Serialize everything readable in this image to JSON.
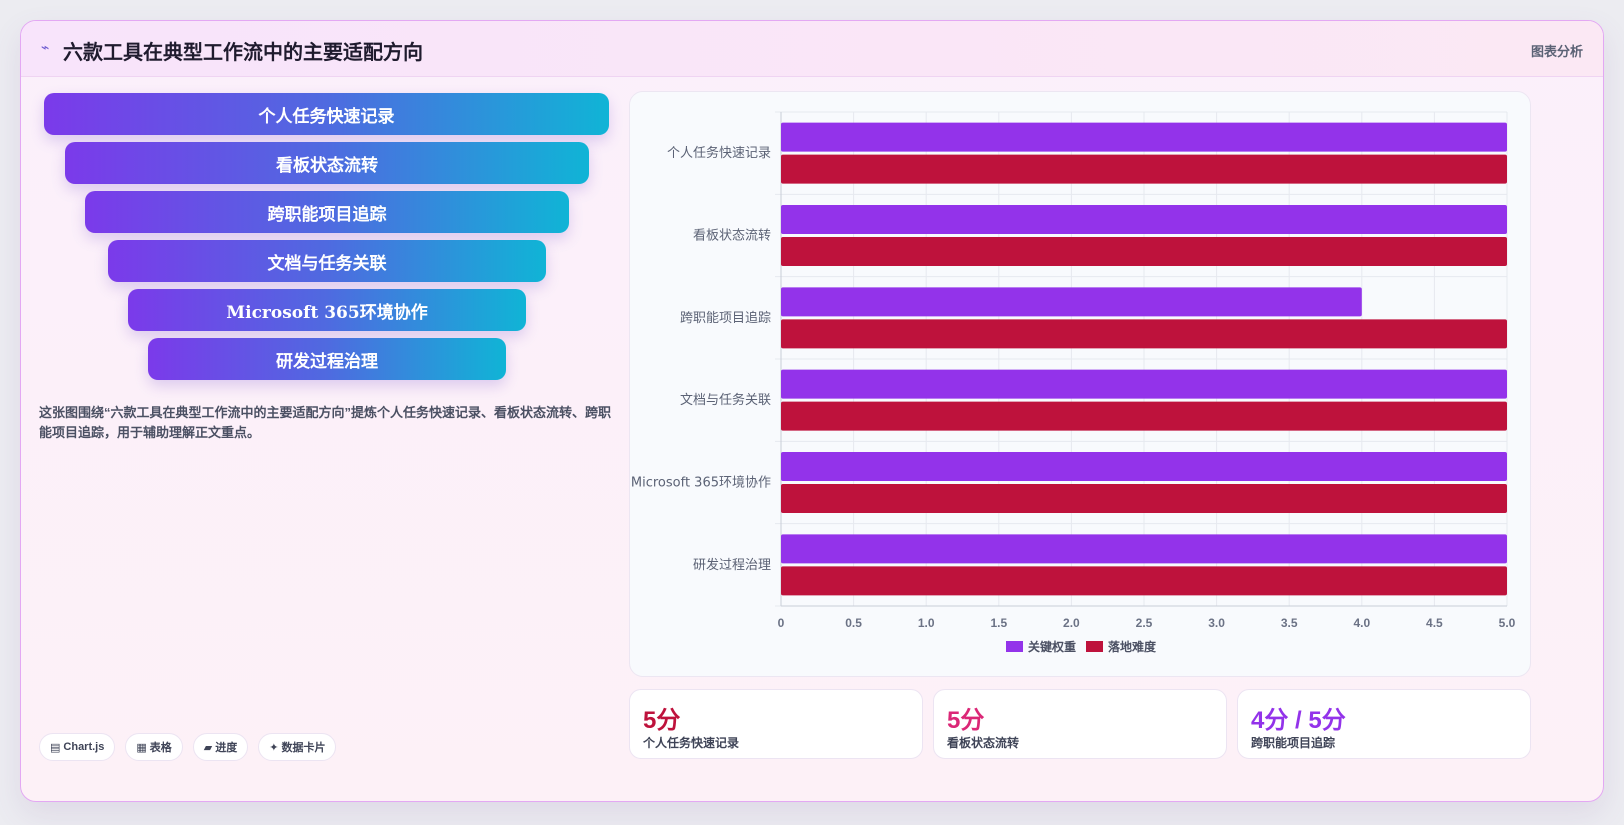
{
  "header": {
    "title": "六款工具在典型工作流中的主要适配方向",
    "tag": "图表分析",
    "icon": "chart-line-icon"
  },
  "funnel": [
    "个人任务快速记录",
    "看板状态流转",
    "跨职能项目追踪",
    "文档与任务关联",
    "Microsoft 365环境协作",
    "研发过程治理"
  ],
  "description": "这张图围绕“六款工具在典型工作流中的主要适配方向”提炼个人任务快速记录、看板状态流转、跨职能项目追踪，用于辅助理解正文重点。",
  "pills": [
    {
      "icon": "▤",
      "label": "Chart.js"
    },
    {
      "icon": "▦",
      "label": "表格"
    },
    {
      "icon": "▰",
      "label": "进度"
    },
    {
      "icon": "✦",
      "label": "数据卡片"
    }
  ],
  "stats": [
    {
      "value": "5分",
      "label": "个人任务快速记录",
      "color": "#be123c"
    },
    {
      "value": "5分",
      "label": "看板状态流转",
      "color": "#db2777"
    },
    {
      "value": "4分 / 5分",
      "label": "跨职能项目追踪",
      "color": "#9333ea"
    }
  ],
  "chart_data": {
    "type": "bar",
    "orientation": "horizontal",
    "categories": [
      "个人任务快速记录",
      "看板状态流转",
      "跨职能项目追踪",
      "文档与任务关联",
      "Microsoft 365环境协作",
      "研发过程治理"
    ],
    "series": [
      {
        "name": "关键权重",
        "color": "#9333ea",
        "values": [
          5,
          5,
          4,
          5,
          5,
          5
        ]
      },
      {
        "name": "落地难度",
        "color": "#be123c",
        "values": [
          5,
          5,
          5,
          5,
          5,
          5
        ]
      }
    ],
    "xlim": [
      0,
      5
    ],
    "xticks": [
      "0",
      "0.5",
      "1.0",
      "1.5",
      "2.0",
      "2.5",
      "3.0",
      "3.5",
      "4.0",
      "4.5",
      "5.0"
    ],
    "grid": true,
    "legend": "bottom"
  }
}
